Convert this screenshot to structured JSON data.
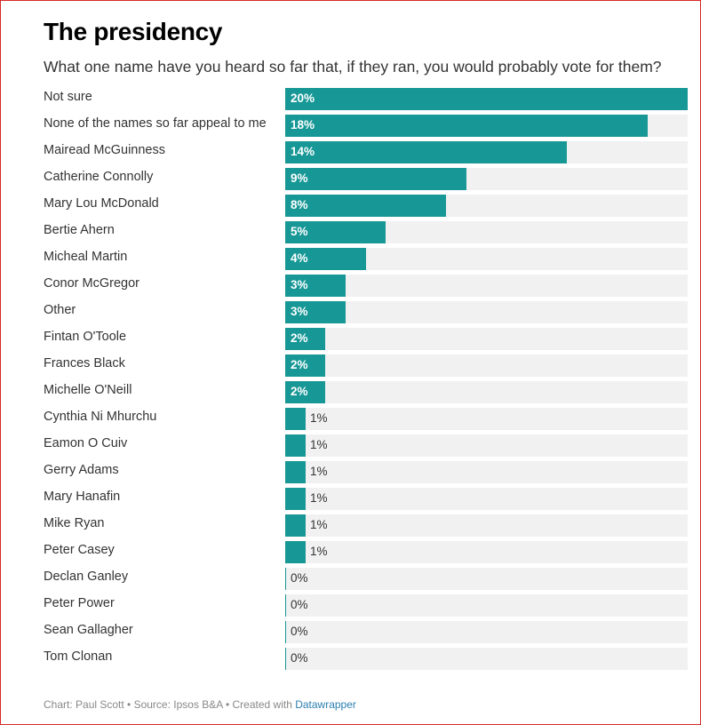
{
  "header": {
    "title": "The presidency",
    "subtitle": "What one name have you heard so far that, if they ran, you would probably vote for them?"
  },
  "colors": {
    "bar": "#179896",
    "track": "#f1f1f1",
    "frame": "#d62a2a"
  },
  "chart_data": {
    "type": "bar",
    "orientation": "horizontal",
    "title": "The presidency",
    "subtitle": "What one name have you heard so far that, if they ran, you would probably vote for them?",
    "unit": "%",
    "xlim": [
      0,
      20
    ],
    "categories": [
      "Not sure",
      "None of the names so far appeal to me",
      "Mairead McGuinness",
      "Catherine Connolly",
      "Mary Lou McDonald",
      "Bertie Ahern",
      "Micheal Martin",
      "Conor McGregor",
      "Other",
      "Fintan O'Toole",
      "Frances Black",
      "Michelle O'Neill",
      "Cynthia Ni Mhurchu",
      "Eamon O Cuiv",
      "Gerry Adams",
      "Mary Hanafin",
      "Mike Ryan",
      "Peter Casey",
      "Declan Ganley",
      "Peter Power",
      "Sean Gallagher",
      "Tom Clonan"
    ],
    "values": [
      20,
      18,
      14,
      9,
      8,
      5,
      4,
      3,
      3,
      2,
      2,
      2,
      1,
      1,
      1,
      1,
      1,
      1,
      0,
      0,
      0,
      0
    ],
    "labels": [
      "20%",
      "18%",
      "14%",
      "9%",
      "8%",
      "5%",
      "4%",
      "3%",
      "3%",
      "2%",
      "2%",
      "2%",
      "1%",
      "1%",
      "1%",
      "1%",
      "1%",
      "1%",
      "0%",
      "0%",
      "0%",
      "0%"
    ],
    "grid": false,
    "legend": "none"
  },
  "footer": {
    "prefix": "Chart: Paul Scott • Source: Ipsos B&A • Created with ",
    "link": "Datawrapper"
  }
}
